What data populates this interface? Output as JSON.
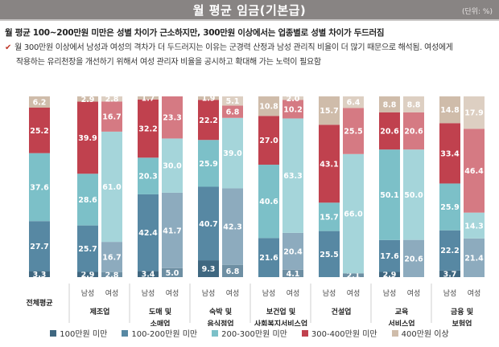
{
  "header": {
    "title": "월 평균 임금(기본급)",
    "unit": "(단위: %)"
  },
  "headline": "월 평균 100~200만원 미만은 성별 차이가 근소하지만, 300만원 이상에서는 업종별로 성별 차이가 두드러짐",
  "note": {
    "line1": "월 300만원 이상에서 남성과 여성의 격차가 더 두드러지는 이유는 군경력 산정과 남성 관리직 비율이 더 많기 때문으로 해석됨. 여성에게",
    "line2": "작용하는 유리천장을 개선하기 위해서 여성 관리자 비율을 공시하고 확대해 가는 노력이 필요함"
  },
  "chart_data": {
    "type": "bar",
    "stacked": true,
    "title": "월 평균 임금(기본급)",
    "unit": "%",
    "ylim": [
      0,
      100
    ],
    "grid": false,
    "legend_position": "bottom",
    "series_names": [
      "100만원 미만",
      "100-200만원 미만",
      "200-300만원 미만",
      "300-400만원 미만",
      "400만원 이상"
    ],
    "colors": {
      "male": [
        "#3f6780",
        "#5788a3",
        "#7cc0c8",
        "#c0414e",
        "#cfbcaa"
      ],
      "female": [
        "#6e8fa3",
        "#8dabbe",
        "#a5d5da",
        "#d57a83",
        "#ddcfc2"
      ],
      "total": [
        "#3f6780",
        "#5788a3",
        "#7cc0c8",
        "#c0414e",
        "#cfbcaa"
      ]
    },
    "groups": [
      {
        "category": "전체평균",
        "category_lines": [
          "전체평균"
        ],
        "bars": [
          {
            "gender": "",
            "kind": "total",
            "values": [
              3.3,
              27.7,
              37.6,
              25.2,
              6.2
            ]
          }
        ]
      },
      {
        "category": "제조업",
        "category_lines": [
          "제조업"
        ],
        "bars": [
          {
            "gender": "남성",
            "kind": "male",
            "values": [
              2.9,
              25.7,
              28.6,
              39.9,
              2.9
            ]
          },
          {
            "gender": "여성",
            "kind": "female",
            "values": [
              2.8,
              16.7,
              61.0,
              16.7,
              2.8
            ]
          }
        ]
      },
      {
        "category": "도매 및 소매업",
        "category_lines": [
          "도매 및",
          "소매업"
        ],
        "bars": [
          {
            "gender": "남성",
            "kind": "male",
            "values": [
              3.4,
              42.4,
              20.3,
              32.2,
              1.7
            ]
          },
          {
            "gender": "여성",
            "kind": "female",
            "values": [
              5.0,
              41.7,
              30.0,
              23.3,
              0
            ]
          }
        ]
      },
      {
        "category": "숙박 및 음식점업",
        "category_lines": [
          "숙박 및",
          "음식점업"
        ],
        "bars": [
          {
            "gender": "남성",
            "kind": "male",
            "values": [
              9.3,
              40.7,
              25.9,
              22.2,
              1.9
            ]
          },
          {
            "gender": "여성",
            "kind": "female",
            "values": [
              6.8,
              42.3,
              39.0,
              6.8,
              5.1
            ]
          }
        ]
      },
      {
        "category": "보건업 및 사회복지서비스업",
        "category_lines": [
          "보건업 및",
          "사회복지서비스업"
        ],
        "bars": [
          {
            "gender": "남성",
            "kind": "male",
            "values": [
              0,
              21.6,
              40.6,
              27.0,
              10.8
            ]
          },
          {
            "gender": "여성",
            "kind": "female",
            "values": [
              4.1,
              20.4,
              63.3,
              10.2,
              2.0
            ]
          }
        ]
      },
      {
        "category": "건설업",
        "category_lines": [
          "건설업"
        ],
        "bars": [
          {
            "gender": "남성",
            "kind": "male",
            "values": [
              0,
              25.5,
              15.7,
              43.1,
              15.7
            ]
          },
          {
            "gender": "여성",
            "kind": "female",
            "values": [
              2.1,
              0,
              66.0,
              25.5,
              6.4
            ]
          }
        ]
      },
      {
        "category": "교육 서비스업",
        "category_lines": [
          "교육",
          "서비스업"
        ],
        "bars": [
          {
            "gender": "남성",
            "kind": "male",
            "values": [
              2.9,
              17.6,
              50.1,
              20.6,
              8.8
            ]
          },
          {
            "gender": "여성",
            "kind": "female",
            "values": [
              0,
              20.6,
              50.0,
              20.6,
              8.8
            ]
          }
        ]
      },
      {
        "category": "금융 및 보험업",
        "category_lines": [
          "금융 및",
          "보험업"
        ],
        "bars": [
          {
            "gender": "남성",
            "kind": "male",
            "values": [
              3.7,
              22.2,
              25.9,
              33.4,
              14.8
            ]
          },
          {
            "gender": "여성",
            "kind": "female",
            "values": [
              0,
              21.4,
              14.3,
              46.4,
              17.9
            ]
          }
        ]
      }
    ]
  },
  "legend": [
    {
      "label": "100만원 미만",
      "color": "#3f6780"
    },
    {
      "label": "100-200만원 미만",
      "color": "#5788a3"
    },
    {
      "label": "200-300만원 미만",
      "color": "#7cc0c8"
    },
    {
      "label": "300-400만원 미만",
      "color": "#c0414e"
    },
    {
      "label": "400만원 이상",
      "color": "#cfbcaa"
    }
  ]
}
